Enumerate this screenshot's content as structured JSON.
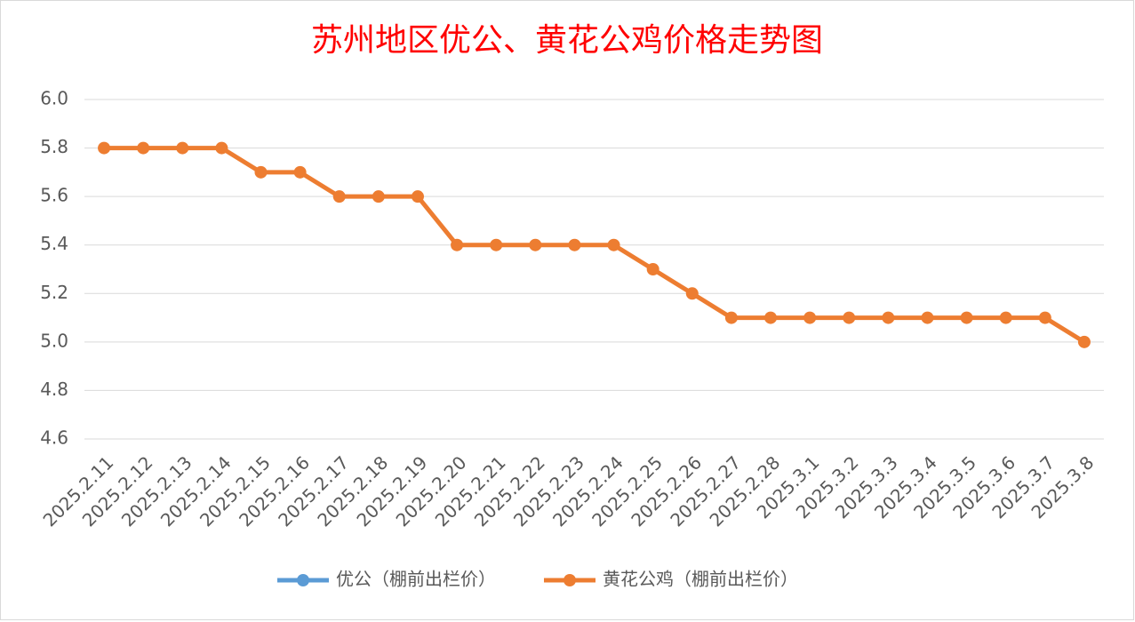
{
  "chart_data": {
    "type": "line",
    "title": "苏州地区优公、黄花公鸡价格走势图",
    "categories": [
      "2025.2.11",
      "2025.2.12",
      "2025.2.13",
      "2025.2.14",
      "2025.2.15",
      "2025.2.16",
      "2025.2.17",
      "2025.2.18",
      "2025.2.19",
      "2025.2.20",
      "2025.2.21",
      "2025.2.22",
      "2025.2.23",
      "2025.2.24",
      "2025.2.25",
      "2025.2.26",
      "2025.2.27",
      "2025.2.28",
      "2025.3.1",
      "2025.3.2",
      "2025.3.3",
      "2025.3.4",
      "2025.3.5",
      "2025.3.6",
      "2025.3.7",
      "2025.3.8"
    ],
    "series": [
      {
        "name": "优公（棚前出栏价）",
        "color": "#5b9bd5",
        "values": [
          null,
          null,
          null,
          null,
          null,
          null,
          null,
          null,
          null,
          null,
          null,
          null,
          null,
          null,
          null,
          null,
          null,
          null,
          null,
          null,
          null,
          null,
          null,
          null,
          null,
          null
        ]
      },
      {
        "name": "黄花公鸡（棚前出栏价）",
        "color": "#ed7d31",
        "values": [
          5.8,
          5.8,
          5.8,
          5.8,
          5.7,
          5.7,
          5.6,
          5.6,
          5.6,
          5.4,
          5.4,
          5.4,
          5.4,
          5.4,
          5.3,
          5.2,
          5.1,
          5.1,
          5.1,
          5.1,
          5.1,
          5.1,
          5.1,
          5.1,
          5.1,
          5.0
        ]
      }
    ],
    "ylim": [
      4.6,
      6.0
    ],
    "yticks": [
      4.6,
      4.8,
      {
        "value": 5,
        "label": "5.0"
      },
      5.2,
      5.4,
      5.6,
      5.8,
      {
        "value": 6,
        "label": "6.0"
      }
    ],
    "grid": true,
    "legend": "bottom"
  }
}
